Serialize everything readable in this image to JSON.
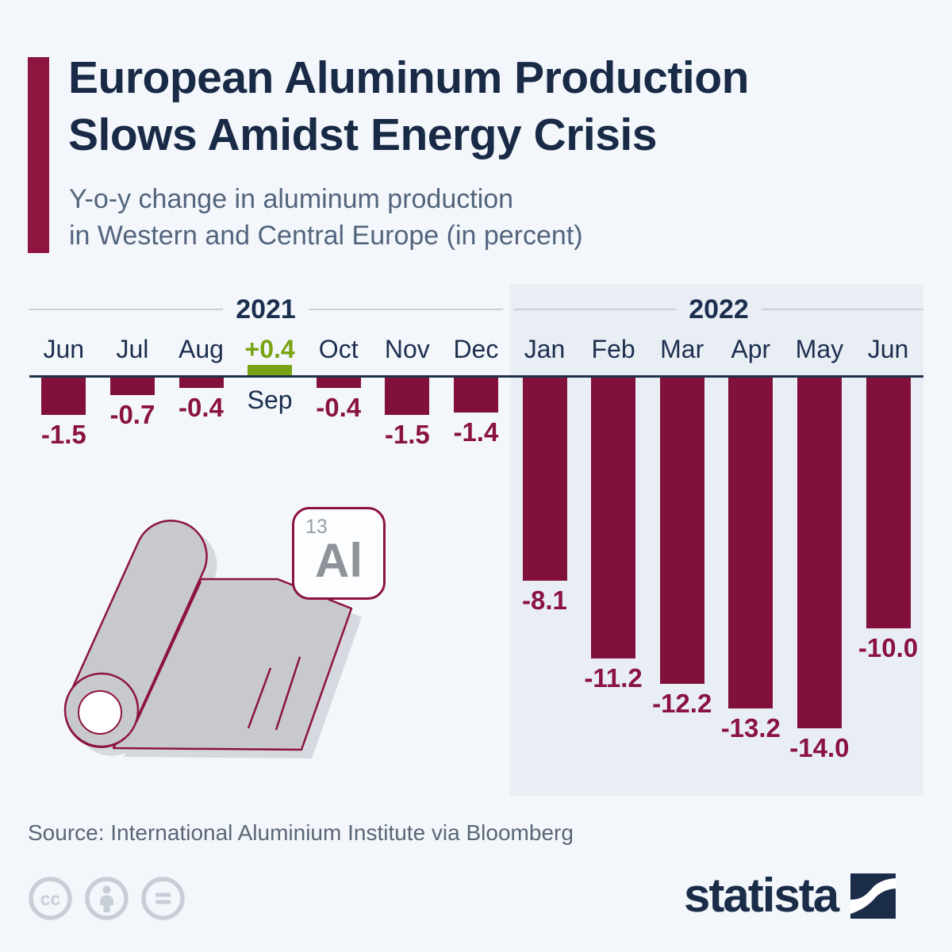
{
  "header": {
    "title_line1": "European Aluminum Production",
    "title_line2": "Slows Amidst Energy Crisis",
    "subtitle_line1": "Y-o-y change in aluminum production",
    "subtitle_line2": "in Western and Central Europe (in percent)"
  },
  "chart_data": {
    "type": "bar",
    "title": "Y-o-y change in aluminum production in Western and Central Europe (in percent)",
    "unit": "percent",
    "ylim": [
      -14.0,
      0.4
    ],
    "grid": false,
    "groups": [
      {
        "year": "2021",
        "months": [
          "Jun",
          "Jul",
          "Aug",
          "Sep",
          "Oct",
          "Nov",
          "Dec"
        ],
        "values": [
          -1.5,
          -0.7,
          -0.4,
          0.4,
          -0.4,
          -1.5,
          -1.4
        ],
        "labels": [
          "-1.5",
          "-0.7",
          "-0.4",
          "+0.4",
          "-0.4",
          "-1.5",
          "-1.4"
        ]
      },
      {
        "year": "2022",
        "months": [
          "Jan",
          "Feb",
          "Mar",
          "Apr",
          "May",
          "Jun"
        ],
        "values": [
          -8.1,
          -11.2,
          -12.2,
          -13.2,
          -14.0,
          -10.0
        ],
        "labels": [
          "-8.1",
          "-11.2",
          "-12.2",
          "-13.2",
          "-14.0",
          "-10.0"
        ]
      }
    ],
    "colors": {
      "negative_bar": "#81103c",
      "positive_bar": "#79a414",
      "value_label": "#8a1242",
      "axis_line": "#1e3048",
      "panel_2022_background": "#e9eef5"
    }
  },
  "element_card": {
    "atomic_number": "13",
    "symbol": "Al"
  },
  "footer": {
    "source": "Source: International Aluminium Institute via Bloomberg",
    "brand": "statista"
  }
}
